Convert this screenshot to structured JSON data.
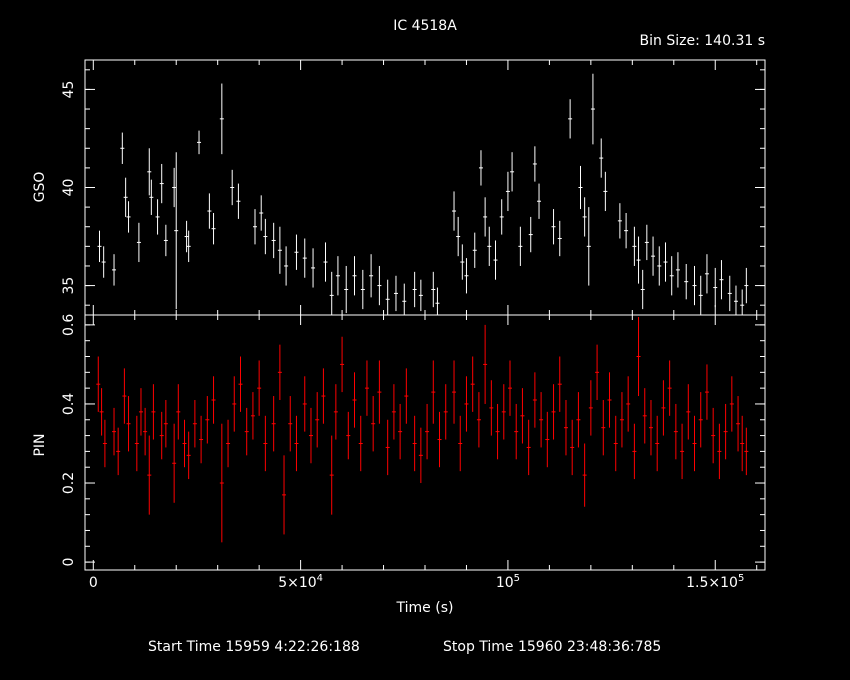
{
  "title": "IC 4518A",
  "bin_size": "Bin Size: 140.31 s",
  "footer": {
    "start": "Start Time 15959  4:22:26:188",
    "stop": "Stop Time 15960 23:48:36:785"
  },
  "colors": {
    "background": "#000000",
    "axes": "#ffffff",
    "gso": "#ffffff",
    "pin": "#ff0000"
  },
  "chart_data": [
    {
      "type": "scatter",
      "name": "gso-panel",
      "ylabel": "GSO",
      "ylim": [
        33.5,
        46.5
      ],
      "xlim": [
        -2000,
        162000
      ],
      "yticks": [
        {
          "value": 35,
          "label": "35"
        },
        {
          "value": 40,
          "label": "40"
        },
        {
          "value": 45,
          "label": "45"
        }
      ],
      "error_bars": true,
      "color": "#ffffff",
      "points": [
        [
          1500,
          37.0,
          0.8
        ],
        [
          2500,
          36.2,
          0.8
        ],
        [
          5000,
          35.8,
          0.8
        ],
        [
          7000,
          42.0,
          0.8
        ],
        [
          7800,
          39.5,
          1.0
        ],
        [
          8500,
          38.5,
          0.8
        ],
        [
          11000,
          37.2,
          1.0
        ],
        [
          13500,
          40.8,
          1.2
        ],
        [
          14000,
          39.5,
          0.9
        ],
        [
          15500,
          38.5,
          0.9
        ],
        [
          16500,
          40.2,
          1.0
        ],
        [
          17500,
          37.3,
          0.8
        ],
        [
          19500,
          40.0,
          1.0
        ],
        [
          20000,
          37.8,
          4.0
        ],
        [
          22500,
          37.5,
          0.8
        ],
        [
          23000,
          37.0,
          0.8
        ],
        [
          25500,
          42.3,
          0.6
        ],
        [
          28000,
          38.8,
          0.9
        ],
        [
          29000,
          37.9,
          0.8
        ],
        [
          31000,
          43.5,
          1.8
        ],
        [
          33500,
          40.0,
          0.9
        ],
        [
          35000,
          39.3,
          0.9
        ],
        [
          39000,
          38.0,
          0.9
        ],
        [
          40500,
          38.7,
          0.9
        ],
        [
          41500,
          37.5,
          0.9
        ],
        [
          43500,
          37.3,
          0.9
        ],
        [
          45000,
          36.8,
          1.2
        ],
        [
          46500,
          36.0,
          1.0
        ],
        [
          49000,
          36.7,
          0.9
        ],
        [
          51000,
          36.4,
          1.0
        ],
        [
          53000,
          35.9,
          1.0
        ],
        [
          56000,
          36.2,
          1.0
        ],
        [
          57500,
          34.5,
          1.2
        ],
        [
          59000,
          35.5,
          1.0
        ],
        [
          61000,
          34.8,
          1.2
        ],
        [
          63000,
          35.5,
          1.0
        ],
        [
          65000,
          34.8,
          1.0
        ],
        [
          67000,
          35.5,
          1.1
        ],
        [
          69000,
          35.0,
          1.0
        ],
        [
          71000,
          34.3,
          1.0
        ],
        [
          73000,
          34.6,
          0.9
        ],
        [
          75000,
          34.2,
          0.9
        ],
        [
          77500,
          34.8,
          0.9
        ],
        [
          79000,
          34.5,
          0.8
        ],
        [
          82000,
          34.8,
          0.9
        ],
        [
          83000,
          34.1,
          0.8
        ],
        [
          87000,
          38.8,
          1.0
        ],
        [
          88000,
          37.5,
          1.0
        ],
        [
          89000,
          36.2,
          0.9
        ],
        [
          90000,
          35.5,
          0.9
        ],
        [
          92000,
          36.8,
          0.9
        ],
        [
          93500,
          41.0,
          0.9
        ],
        [
          94500,
          38.5,
          1.0
        ],
        [
          95500,
          37.0,
          1.0
        ],
        [
          97000,
          36.3,
          1.0
        ],
        [
          98500,
          38.5,
          0.9
        ],
        [
          100000,
          39.8,
          1.0
        ],
        [
          101000,
          40.8,
          1.0
        ],
        [
          103000,
          37.0,
          1.0
        ],
        [
          105500,
          37.6,
          0.9
        ],
        [
          106500,
          41.2,
          0.9
        ],
        [
          107500,
          39.3,
          0.9
        ],
        [
          111000,
          38.0,
          0.9
        ],
        [
          112500,
          37.4,
          0.9
        ],
        [
          115000,
          43.5,
          1.0
        ],
        [
          117500,
          40.0,
          1.1
        ],
        [
          118500,
          38.5,
          1.0
        ],
        [
          119500,
          37.0,
          2.0
        ],
        [
          120500,
          44.0,
          1.8
        ],
        [
          122500,
          41.5,
          1.0
        ],
        [
          123500,
          39.8,
          1.0
        ],
        [
          127000,
          38.3,
          0.9
        ],
        [
          128500,
          37.8,
          0.9
        ],
        [
          130500,
          37.0,
          1.0
        ],
        [
          131500,
          36.3,
          1.2
        ],
        [
          132500,
          34.8,
          1.0
        ],
        [
          133500,
          37.2,
          0.9
        ],
        [
          135000,
          36.5,
          1.0
        ],
        [
          136500,
          36.0,
          1.0
        ],
        [
          138000,
          36.2,
          1.0
        ],
        [
          139500,
          35.5,
          1.0
        ],
        [
          141000,
          35.8,
          0.9
        ],
        [
          143000,
          35.2,
          0.9
        ],
        [
          145000,
          35.0,
          1.0
        ],
        [
          146500,
          34.5,
          1.0
        ],
        [
          148000,
          35.6,
          1.0
        ],
        [
          150000,
          34.9,
          1.0
        ],
        [
          151500,
          35.3,
          1.0
        ],
        [
          153500,
          34.6,
          0.9
        ],
        [
          155000,
          34.2,
          0.8
        ],
        [
          156500,
          34.0,
          0.8
        ],
        [
          157500,
          35.0,
          0.9
        ]
      ]
    },
    {
      "type": "scatter",
      "name": "pin-panel",
      "ylabel": "PIN",
      "ylim": [
        -0.02,
        0.625
      ],
      "xlim": [
        -2000,
        162000
      ],
      "xlabel": "Time (s)",
      "yticks": [
        {
          "value": 0,
          "label": "0"
        },
        {
          "value": 0.2,
          "label": "0.2"
        },
        {
          "value": 0.4,
          "label": "0.4"
        },
        {
          "value": 0.6,
          "label": "0.6"
        }
      ],
      "xticks": [
        {
          "value": 0,
          "label": "0"
        },
        {
          "value": 50000,
          "label": "5×10",
          "sup": "4"
        },
        {
          "value": 100000,
          "label": "10",
          "sup": "5"
        },
        {
          "value": 150000,
          "label": "1.5×10",
          "sup": "5"
        }
      ],
      "error_bars": true,
      "color": "#ff0000",
      "points": [
        [
          1200,
          0.45,
          0.07
        ],
        [
          2000,
          0.38,
          0.06
        ],
        [
          2800,
          0.3,
          0.06
        ],
        [
          5000,
          0.33,
          0.06
        ],
        [
          6000,
          0.28,
          0.06
        ],
        [
          7500,
          0.42,
          0.07
        ],
        [
          8500,
          0.35,
          0.07
        ],
        [
          10500,
          0.3,
          0.07
        ],
        [
          11500,
          0.38,
          0.06
        ],
        [
          12500,
          0.33,
          0.06
        ],
        [
          13500,
          0.22,
          0.1
        ],
        [
          14500,
          0.38,
          0.07
        ],
        [
          16500,
          0.32,
          0.06
        ],
        [
          17500,
          0.35,
          0.06
        ],
        [
          19500,
          0.25,
          0.1
        ],
        [
          20500,
          0.38,
          0.07
        ],
        [
          22000,
          0.3,
          0.06
        ],
        [
          23000,
          0.27,
          0.06
        ],
        [
          24500,
          0.35,
          0.06
        ],
        [
          26000,
          0.31,
          0.06
        ],
        [
          27500,
          0.36,
          0.06
        ],
        [
          29000,
          0.41,
          0.06
        ],
        [
          31000,
          0.2,
          0.15
        ],
        [
          32500,
          0.3,
          0.06
        ],
        [
          34000,
          0.4,
          0.07
        ],
        [
          35500,
          0.45,
          0.07
        ],
        [
          37000,
          0.33,
          0.06
        ],
        [
          38500,
          0.37,
          0.06
        ],
        [
          40000,
          0.44,
          0.07
        ],
        [
          41500,
          0.3,
          0.07
        ],
        [
          43500,
          0.35,
          0.07
        ],
        [
          45000,
          0.48,
          0.07
        ],
        [
          46000,
          0.17,
          0.1
        ],
        [
          47500,
          0.35,
          0.07
        ],
        [
          49000,
          0.3,
          0.07
        ],
        [
          51000,
          0.4,
          0.07
        ],
        [
          52500,
          0.32,
          0.07
        ],
        [
          54000,
          0.36,
          0.07
        ],
        [
          55500,
          0.42,
          0.07
        ],
        [
          57500,
          0.22,
          0.1
        ],
        [
          58500,
          0.38,
          0.07
        ],
        [
          60000,
          0.5,
          0.07
        ],
        [
          61500,
          0.32,
          0.06
        ],
        [
          63000,
          0.41,
          0.07
        ],
        [
          64500,
          0.3,
          0.07
        ],
        [
          66000,
          0.44,
          0.07
        ],
        [
          67500,
          0.35,
          0.07
        ],
        [
          69000,
          0.43,
          0.08
        ],
        [
          71000,
          0.29,
          0.07
        ],
        [
          72500,
          0.38,
          0.07
        ],
        [
          74000,
          0.33,
          0.07
        ],
        [
          75500,
          0.42,
          0.07
        ],
        [
          77500,
          0.3,
          0.07
        ],
        [
          79000,
          0.27,
          0.07
        ],
        [
          80500,
          0.33,
          0.07
        ],
        [
          82000,
          0.43,
          0.08
        ],
        [
          83500,
          0.31,
          0.07
        ],
        [
          85000,
          0.38,
          0.07
        ],
        [
          87000,
          0.43,
          0.08
        ],
        [
          88500,
          0.3,
          0.07
        ],
        [
          90000,
          0.4,
          0.07
        ],
        [
          91500,
          0.45,
          0.07
        ],
        [
          93000,
          0.36,
          0.07
        ],
        [
          94500,
          0.5,
          0.1
        ],
        [
          96000,
          0.39,
          0.07
        ],
        [
          97500,
          0.33,
          0.07
        ],
        [
          99000,
          0.38,
          0.07
        ],
        [
          100500,
          0.44,
          0.07
        ],
        [
          102000,
          0.33,
          0.07
        ],
        [
          103500,
          0.37,
          0.07
        ],
        [
          105000,
          0.29,
          0.07
        ],
        [
          106500,
          0.41,
          0.07
        ],
        [
          108000,
          0.36,
          0.07
        ],
        [
          109500,
          0.31,
          0.07
        ],
        [
          111000,
          0.38,
          0.07
        ],
        [
          112500,
          0.45,
          0.07
        ],
        [
          114000,
          0.34,
          0.07
        ],
        [
          115500,
          0.29,
          0.07
        ],
        [
          117000,
          0.36,
          0.07
        ],
        [
          118500,
          0.22,
          0.08
        ],
        [
          120000,
          0.39,
          0.07
        ],
        [
          121500,
          0.48,
          0.07
        ],
        [
          123000,
          0.34,
          0.07
        ],
        [
          124500,
          0.41,
          0.07
        ],
        [
          126000,
          0.3,
          0.07
        ],
        [
          127500,
          0.36,
          0.07
        ],
        [
          129000,
          0.4,
          0.07
        ],
        [
          130500,
          0.28,
          0.07
        ],
        [
          131500,
          0.52,
          0.1
        ],
        [
          133000,
          0.37,
          0.07
        ],
        [
          134500,
          0.34,
          0.07
        ],
        [
          136000,
          0.3,
          0.07
        ],
        [
          137500,
          0.39,
          0.07
        ],
        [
          139000,
          0.44,
          0.07
        ],
        [
          140500,
          0.33,
          0.07
        ],
        [
          142000,
          0.28,
          0.07
        ],
        [
          143500,
          0.38,
          0.07
        ],
        [
          145000,
          0.3,
          0.07
        ],
        [
          146500,
          0.36,
          0.07
        ],
        [
          148000,
          0.43,
          0.07
        ],
        [
          149500,
          0.32,
          0.07
        ],
        [
          151000,
          0.28,
          0.07
        ],
        [
          152500,
          0.33,
          0.07
        ],
        [
          154000,
          0.4,
          0.07
        ],
        [
          155500,
          0.35,
          0.07
        ],
        [
          156500,
          0.3,
          0.07
        ],
        [
          157500,
          0.28,
          0.06
        ]
      ]
    }
  ]
}
